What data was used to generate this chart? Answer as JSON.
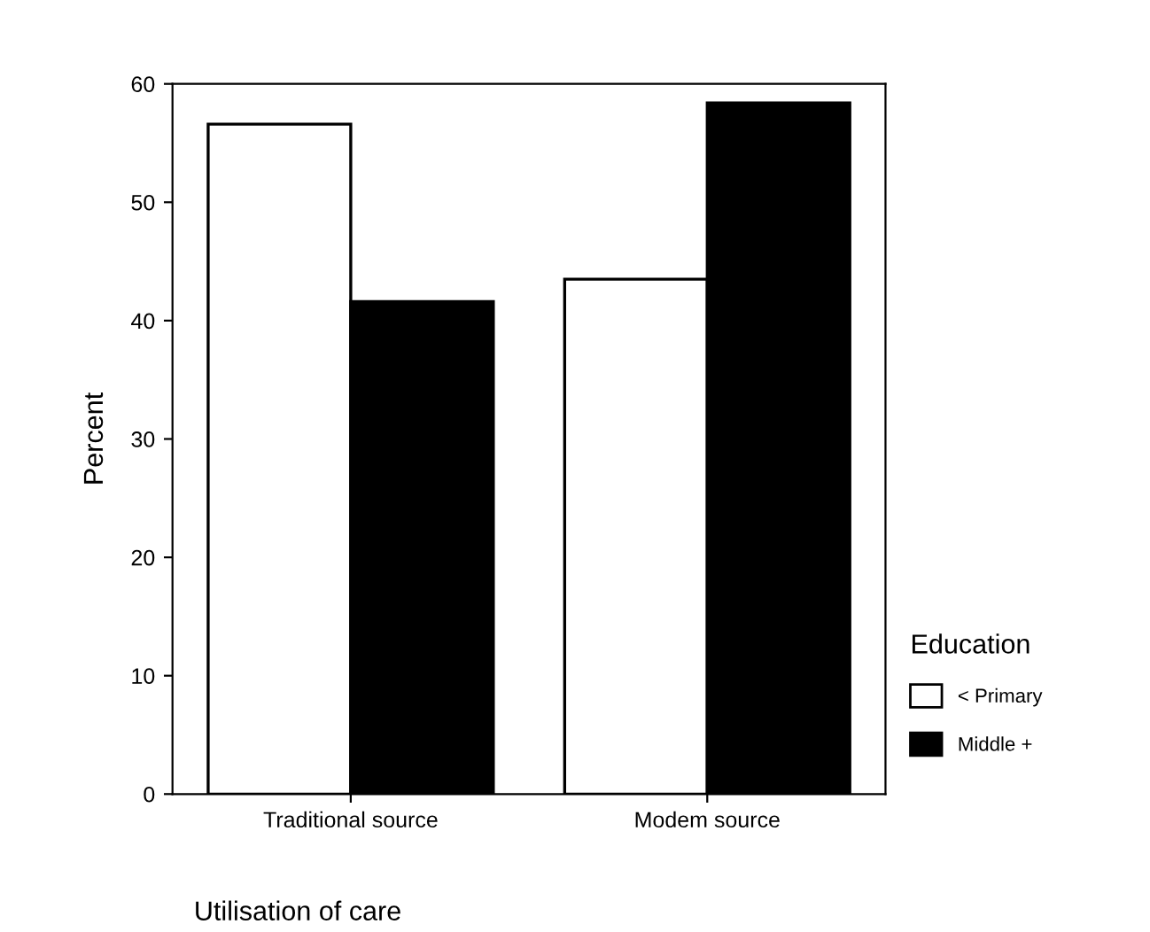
{
  "chart_data": {
    "type": "bar",
    "xlabel": "Utilisation of care",
    "ylabel": "Percent",
    "legend_title": "Education",
    "categories": [
      "Traditional source",
      "Modem source"
    ],
    "series": [
      {
        "name": "< Primary",
        "color": "#ffffff",
        "values": [
          56.6,
          43.5
        ]
      },
      {
        "name": "Middle +",
        "color": "#000000",
        "values": [
          41.6,
          58.4
        ]
      }
    ],
    "ylim": [
      0,
      60
    ],
    "yticks": [
      0,
      10,
      20,
      30,
      40,
      50,
      60
    ],
    "grid": false,
    "legend": "right"
  }
}
